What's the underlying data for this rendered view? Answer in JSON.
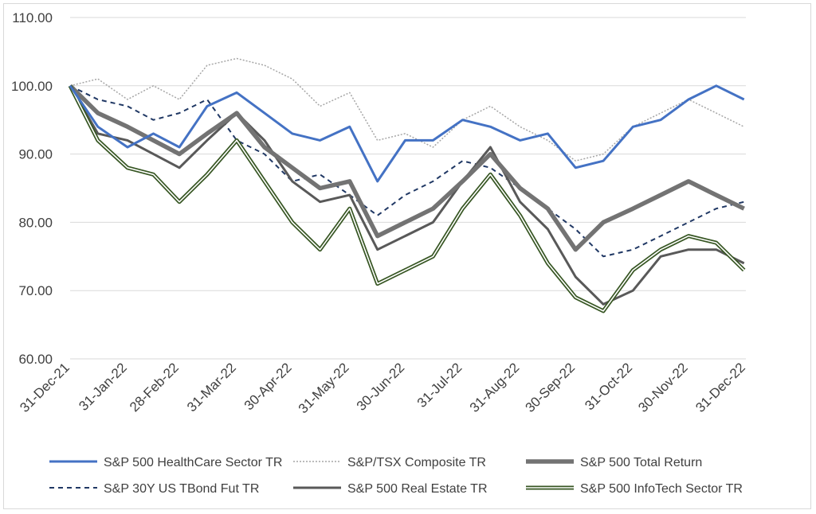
{
  "chart_data": {
    "type": "line",
    "title": "",
    "xlabel": "",
    "ylabel": "",
    "ylim": [
      60,
      110
    ],
    "yticks": [
      "60.00",
      "70.00",
      "80.00",
      "90.00",
      "100.00",
      "110.00"
    ],
    "xticks": [
      "31-Dec-21",
      "31-Jan-22",
      "28-Feb-22",
      "31-Mar-22",
      "30-Apr-22",
      "31-May-22",
      "30-Jun-22",
      "31-Jul-22",
      "31-Aug-22",
      "30-Sep-22",
      "31-Oct-22",
      "30-Nov-22",
      "31-Dec-22"
    ],
    "x": [
      "2021-12-31",
      "2022-01-15",
      "2022-01-31",
      "2022-02-14",
      "2022-02-28",
      "2022-03-15",
      "2022-03-31",
      "2022-04-15",
      "2022-04-30",
      "2022-05-15",
      "2022-05-31",
      "2022-06-15",
      "2022-06-30",
      "2022-07-15",
      "2022-07-31",
      "2022-08-15",
      "2022-08-31",
      "2022-09-15",
      "2022-09-30",
      "2022-10-15",
      "2022-10-31",
      "2022-11-15",
      "2022-11-30",
      "2022-12-15",
      "2022-12-30"
    ],
    "grid": true,
    "legend_position": "bottom",
    "series": [
      {
        "name": "S&P 500 HealthCare Sector TR",
        "color": "#4472c4",
        "style": "solid-medium",
        "values": [
          100,
          94,
          91,
          93,
          91,
          97,
          99,
          96,
          93,
          92,
          94,
          86,
          92,
          92,
          95,
          94,
          92,
          93,
          88,
          89,
          94,
          95,
          98,
          100,
          98
        ]
      },
      {
        "name": "S&P/TSX Composite TR",
        "color": "#a6a6a6",
        "style": "dotted",
        "values": [
          100,
          101,
          98,
          100,
          98,
          103,
          104,
          103,
          101,
          97,
          99,
          92,
          93,
          91,
          95,
          97,
          94,
          92,
          89,
          90,
          94,
          96,
          98,
          96,
          94
        ]
      },
      {
        "name": "S&P 500 Total Return",
        "color": "#737373",
        "style": "solid-thick",
        "values": [
          100,
          96,
          94,
          92,
          90,
          93,
          96,
          91,
          88,
          85,
          86,
          78,
          80,
          82,
          86,
          90,
          85,
          82,
          76,
          80,
          82,
          84,
          86,
          84,
          82
        ]
      },
      {
        "name": "S&P 30Y US TBond Fut TR",
        "color": "#203864",
        "style": "dashed",
        "values": [
          100,
          98,
          97,
          95,
          96,
          98,
          92,
          90,
          86,
          87,
          84,
          81,
          84,
          86,
          89,
          88,
          85,
          82,
          79,
          75,
          76,
          78,
          80,
          82,
          83
        ]
      },
      {
        "name": "S&P 500 Real Estate TR",
        "color": "#595959",
        "style": "solid-medium",
        "values": [
          100,
          93,
          92,
          90,
          88,
          92,
          96,
          92,
          86,
          83,
          84,
          76,
          78,
          80,
          86,
          91,
          83,
          79,
          72,
          68,
          70,
          75,
          76,
          76,
          74
        ]
      },
      {
        "name": "S&P 500 InfoTech Sector TR",
        "color": "#375623",
        "style": "double",
        "values": [
          100,
          92,
          88,
          87,
          83,
          87,
          92,
          86,
          80,
          76,
          82,
          71,
          73,
          75,
          82,
          87,
          81,
          74,
          69,
          67,
          73,
          76,
          78,
          77,
          73
        ]
      }
    ]
  }
}
